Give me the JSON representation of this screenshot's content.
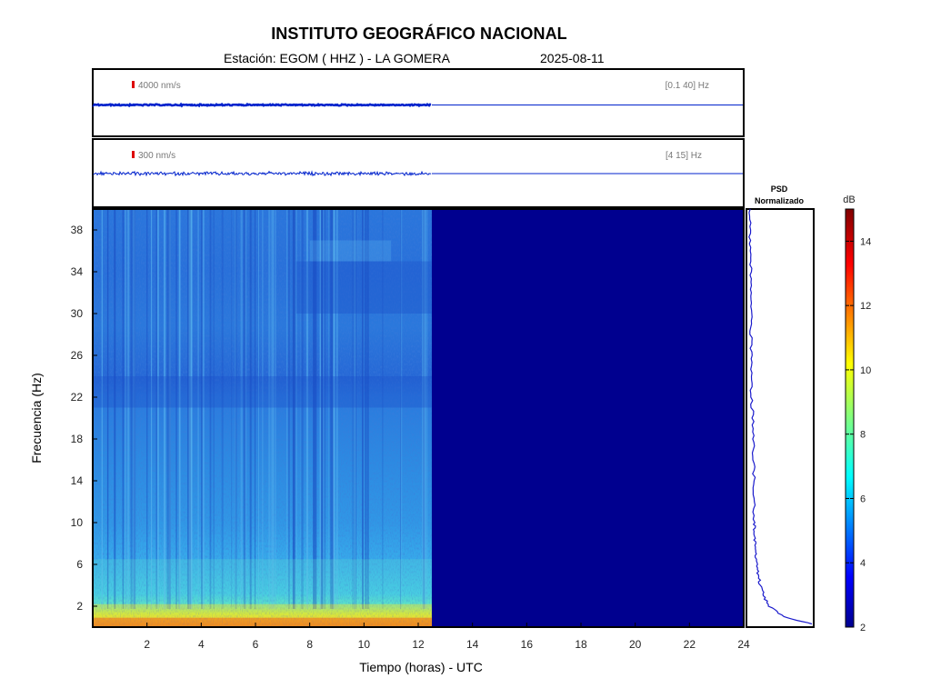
{
  "header": {
    "title": "INSTITUTO GEOGRÁFICO NACIONAL",
    "station": "Estación:  EGOM ( HHZ ) - LA GOMERA",
    "date": "2025-08-11"
  },
  "colors": {
    "trace": "#0022cc",
    "scale_marker": "#dd0000",
    "spectrogram_background": "#00008f",
    "psd_line": "#1a1acc"
  },
  "chart_data": [
    {
      "type": "line",
      "name": "trace-broadband",
      "scale_label": "4000 nm/s",
      "band_label": "[0.1 40] Hz",
      "x_range": [
        0,
        24
      ],
      "data_end_hour": 12.5,
      "amplitude_level": "high"
    },
    {
      "type": "line",
      "name": "trace-filtered",
      "scale_label": "300 nm/s",
      "band_label": "[4 15] Hz",
      "x_range": [
        0,
        24
      ],
      "data_end_hour": 12.5,
      "amplitude_level": "low"
    },
    {
      "type": "heatmap",
      "name": "spectrogram",
      "xlabel": "Tiempo (horas) - UTC",
      "ylabel": "Frecuencia  (Hz)",
      "xlim": [
        0,
        24
      ],
      "ylim": [
        0,
        40
      ],
      "x_ticks": [
        2,
        4,
        6,
        8,
        10,
        12,
        14,
        16,
        18,
        20,
        22,
        24
      ],
      "y_ticks": [
        2,
        6,
        10,
        14,
        18,
        22,
        26,
        30,
        34,
        38
      ],
      "data_end_hour": 12.5,
      "colorscale": "jet",
      "zlim": [
        2,
        15
      ],
      "colorbar_label": "dB",
      "colorbar_ticks": [
        2,
        4,
        6,
        8,
        10,
        12,
        14
      ]
    },
    {
      "type": "line",
      "name": "psd-normalized",
      "title_line1": "PSD",
      "title_line2": "Normalizado",
      "ylim": [
        0,
        40
      ],
      "profile": [
        [
          0.3,
          1.0
        ],
        [
          1.0,
          0.55
        ],
        [
          2.0,
          0.33
        ],
        [
          3.0,
          0.24
        ],
        [
          4.0,
          0.19
        ],
        [
          5.0,
          0.16
        ],
        [
          6.0,
          0.14
        ],
        [
          7.0,
          0.12
        ],
        [
          8.0,
          0.11
        ],
        [
          9.0,
          0.1
        ],
        [
          10.0,
          0.09
        ],
        [
          12.0,
          0.085
        ],
        [
          14.0,
          0.09
        ],
        [
          16.0,
          0.085
        ],
        [
          18.0,
          0.08
        ],
        [
          20.0,
          0.07
        ],
        [
          22.0,
          0.05
        ],
        [
          24.0,
          0.055
        ],
        [
          26.0,
          0.05
        ],
        [
          28.0,
          0.04
        ],
        [
          30.0,
          0.045
        ],
        [
          32.0,
          0.04
        ],
        [
          34.0,
          0.04
        ],
        [
          36.0,
          0.035
        ],
        [
          38.0,
          0.03
        ],
        [
          40.0,
          0.03
        ]
      ]
    }
  ]
}
